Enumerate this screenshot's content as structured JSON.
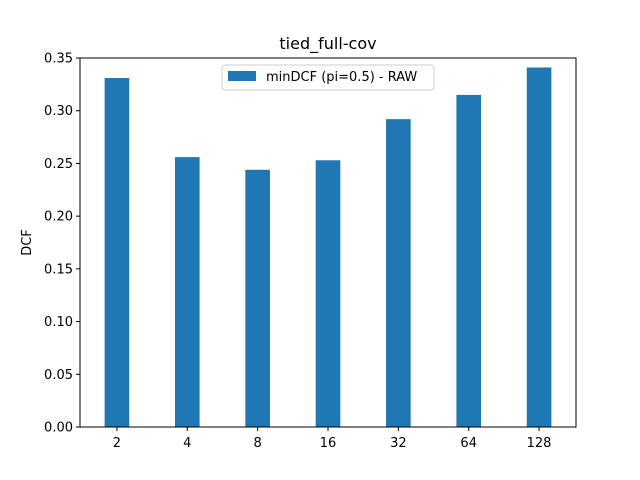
{
  "chart_data": {
    "type": "bar",
    "title": "tied_full-cov",
    "xlabel": "",
    "ylabel": "DCF",
    "categories": [
      "2",
      "4",
      "8",
      "16",
      "32",
      "64",
      "128"
    ],
    "series": [
      {
        "name": "minDCF (pi=0.5) - RAW",
        "values": [
          0.331,
          0.256,
          0.244,
          0.253,
          0.292,
          0.315,
          0.341
        ],
        "color": "#1f77b4"
      }
    ],
    "ylim": [
      0,
      0.35
    ],
    "yticks": [
      "0.00",
      "0.05",
      "0.10",
      "0.15",
      "0.20",
      "0.25",
      "0.30",
      "0.35"
    ],
    "grid": false,
    "legend_position": "top-center"
  }
}
